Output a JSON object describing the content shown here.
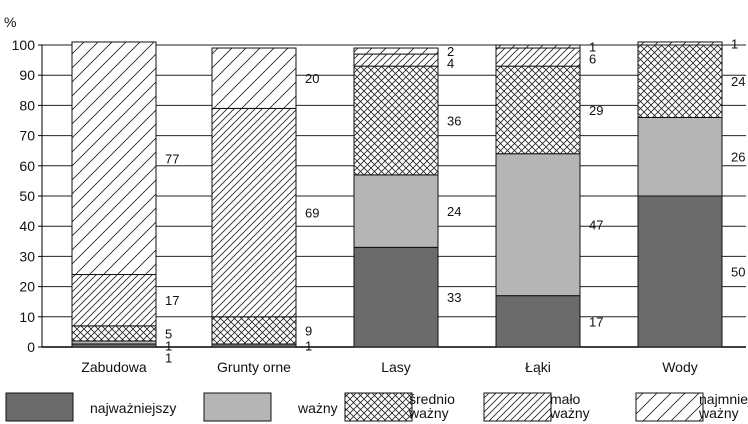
{
  "chart_data": {
    "type": "bar",
    "stacked": true,
    "categories": [
      "Zabudowa",
      "Grunty orne",
      "Lasy",
      "Łąki",
      "Wody"
    ],
    "series": [
      {
        "name": "najważniejszy",
        "values": [
          1,
          1,
          33,
          17,
          50
        ],
        "color": "#6b6b6b",
        "pattern": "solid-dark"
      },
      {
        "name": "ważny",
        "values": [
          1,
          0,
          24,
          47,
          26
        ],
        "color": "#b5b5b5",
        "pattern": "solid-light"
      },
      {
        "name": "średnio ważny",
        "values": [
          5,
          9,
          36,
          29,
          24
        ],
        "color": "#ffffff",
        "pattern": "crosshatch"
      },
      {
        "name": "mało ważny",
        "values": [
          17,
          69,
          4,
          6,
          0
        ],
        "color": "#ffffff",
        "pattern": "dense-diagonal"
      },
      {
        "name": "najmniej ważny",
        "values": [
          77,
          20,
          2,
          1,
          1
        ],
        "color": "#ffffff",
        "pattern": "sparse-diagonal"
      }
    ],
    "data_labels": [
      [
        "77",
        "17",
        "5",
        "1",
        "1"
      ],
      [
        "20",
        "69",
        "9",
        "1"
      ],
      [
        "2",
        "4",
        "36",
        "24",
        "33"
      ],
      [
        "1",
        "6",
        "29",
        "47",
        "17"
      ],
      [
        "1",
        "24",
        "26",
        "50"
      ]
    ],
    "ylabel": "%",
    "ylim": [
      0,
      100
    ],
    "yticks": [
      0,
      10,
      20,
      30,
      40,
      50,
      60,
      70,
      80,
      90,
      100
    ],
    "grid": true,
    "legend_position": "bottom"
  }
}
